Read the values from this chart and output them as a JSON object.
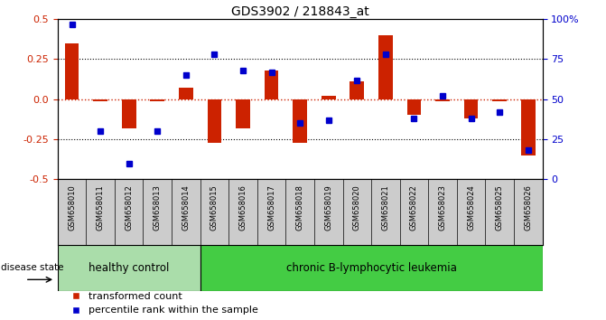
{
  "title": "GDS3902 / 218843_at",
  "samples": [
    "GSM658010",
    "GSM658011",
    "GSM658012",
    "GSM658013",
    "GSM658014",
    "GSM658015",
    "GSM658016",
    "GSM658017",
    "GSM658018",
    "GSM658019",
    "GSM658020",
    "GSM658021",
    "GSM658022",
    "GSM658023",
    "GSM658024",
    "GSM658025",
    "GSM658026"
  ],
  "red_bars": [
    0.35,
    -0.01,
    -0.18,
    -0.01,
    0.07,
    -0.27,
    -0.18,
    0.18,
    -0.27,
    0.02,
    0.11,
    0.4,
    -0.1,
    -0.01,
    -0.12,
    -0.01,
    -0.35
  ],
  "blue_dots_pct": [
    97,
    30,
    10,
    30,
    65,
    78,
    68,
    67,
    35,
    37,
    62,
    78,
    38,
    52,
    38,
    42,
    18
  ],
  "healthy_count": 5,
  "leukemia_count": 12,
  "healthy_label": "healthy control",
  "leukemia_label": "chronic B-lymphocytic leukemia",
  "disease_state_label": "disease state",
  "legend_red": "transformed count",
  "legend_blue": "percentile rank within the sample",
  "ylim": [
    -0.5,
    0.5
  ],
  "yticks_left": [
    -0.5,
    -0.25,
    0.0,
    0.25,
    0.5
  ],
  "yticks_right_labels": [
    "0",
    "25",
    "50",
    "75",
    "100%"
  ],
  "bar_color": "#cc2200",
  "dot_color": "#0000cc",
  "healthy_bg": "#aaddaa",
  "leukemia_bg": "#44cc44",
  "tick_area_bg": "#cccccc",
  "zero_line_color": "#cc2200",
  "grid_color": "#000000",
  "title_color": "#333333"
}
